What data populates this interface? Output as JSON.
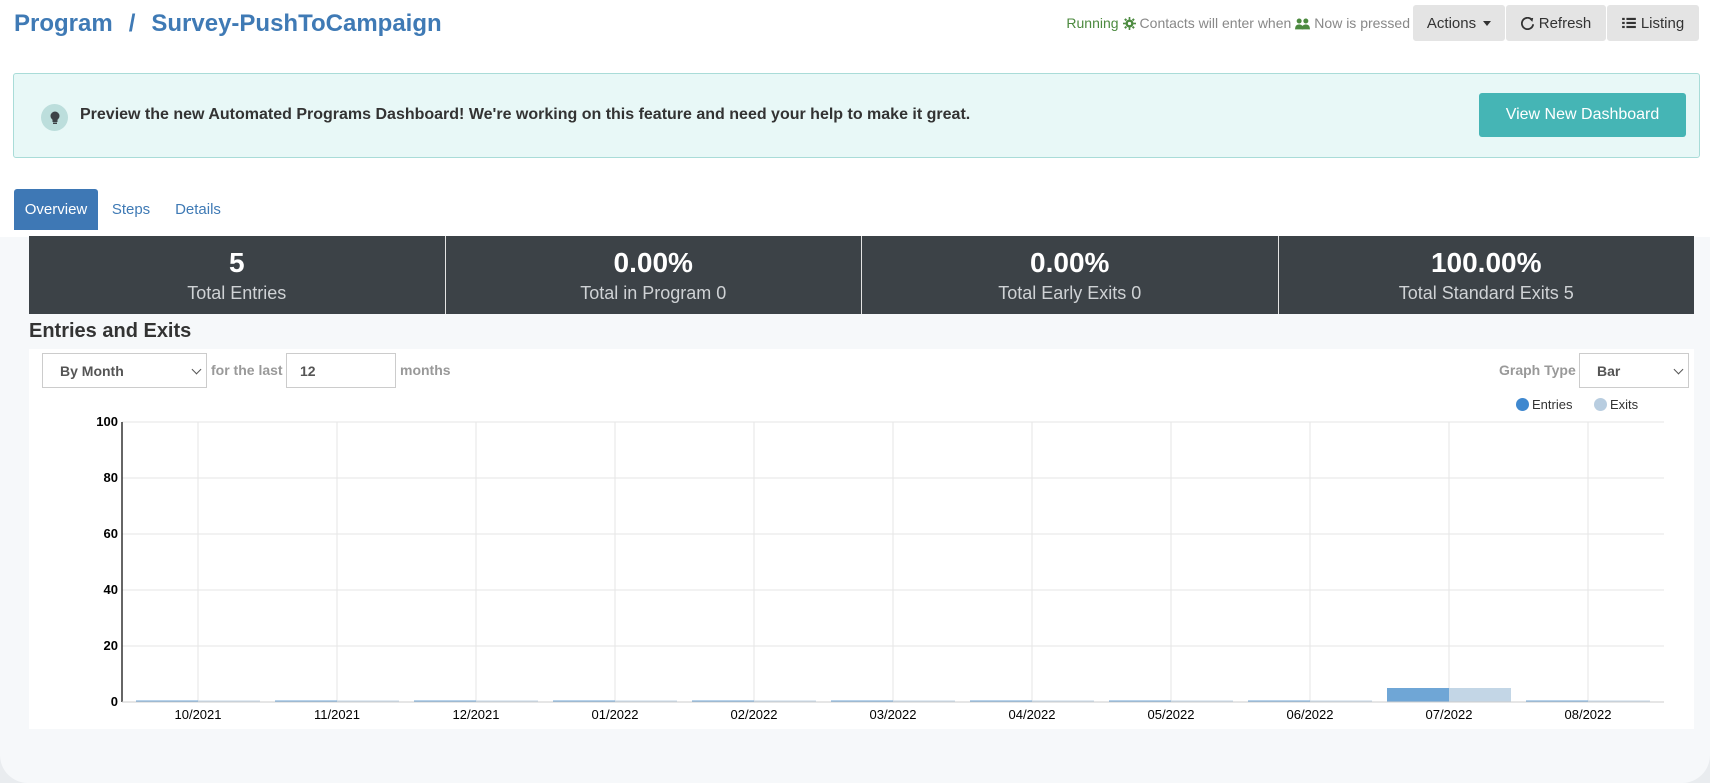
{
  "header": {
    "breadcrumb_root": "Program",
    "separator": "/",
    "program_name": "Survey-PushToCampaign",
    "status_running": "Running",
    "status_text_1": "Contacts will enter when",
    "status_text_2": "Now is pressed",
    "actions_label": "Actions",
    "refresh_label": "Refresh",
    "listing_label": "Listing"
  },
  "banner": {
    "text": "Preview the new Automated Programs Dashboard! We're working on this feature and need your help to make it great.",
    "button_label": "View New Dashboard"
  },
  "tabs": [
    {
      "label": "Overview"
    },
    {
      "label": "Steps"
    },
    {
      "label": "Details"
    }
  ],
  "stats": [
    {
      "value": "5",
      "label": "Total Entries"
    },
    {
      "value": "0.00%",
      "label": "Total in Program 0"
    },
    {
      "value": "0.00%",
      "label": "Total Early Exits 0"
    },
    {
      "value": "100.00%",
      "label": "Total Standard Exits 5"
    }
  ],
  "section": {
    "title": "Entries and Exits"
  },
  "controls": {
    "period_value": "By Month",
    "for_the_last": "for the last",
    "count_value": "12",
    "months": "months",
    "graph_type_label": "Graph Type",
    "graph_type_value": "Bar"
  },
  "colors": {
    "accent": "#3f7ab5",
    "teal": "#45b5b5",
    "running": "#4c8a3f",
    "entries": "#6fa6d6",
    "exits": "#c3d6e6",
    "stats_bg": "#3c4247"
  },
  "chart_data": {
    "type": "bar",
    "categories": [
      "10/2021",
      "11/2021",
      "12/2021",
      "01/2022",
      "02/2022",
      "03/2022",
      "04/2022",
      "05/2022",
      "06/2022",
      "07/2022",
      "08/2022"
    ],
    "series": [
      {
        "name": "Entries",
        "values": [
          0,
          0,
          0,
          0,
          0,
          0,
          0,
          0,
          0,
          5,
          0
        ]
      },
      {
        "name": "Exits",
        "values": [
          0,
          0,
          0,
          0,
          0,
          0,
          0,
          0,
          0,
          5,
          0
        ]
      }
    ],
    "ylim": [
      0,
      100
    ],
    "yticks": [
      0,
      20,
      40,
      60,
      80,
      100
    ],
    "legend": "top-right",
    "grid": true
  }
}
